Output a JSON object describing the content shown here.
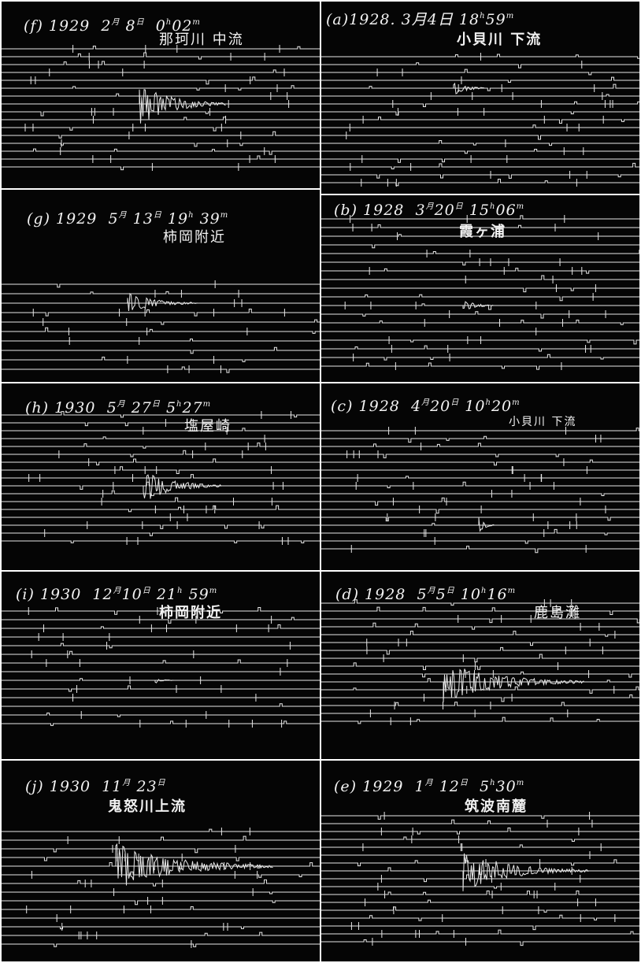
{
  "panels": [
    {
      "id": "f",
      "year": "1929",
      "month": "2",
      "day": "8",
      "hour": "0",
      "minute": "02",
      "paren_label": "(f)",
      "month_mark": "月",
      "day_mark": "日",
      "hour_mark": "h",
      "minute_mark": "m",
      "place": "那珂川 中流"
    },
    {
      "id": "a",
      "year": "1928.",
      "month": "3",
      "day": "4",
      "hour": "18",
      "minute": "59",
      "paren_label": "(a)",
      "month_mark": "月",
      "day_mark": "日",
      "hour_mark": "h",
      "minute_mark": "m",
      "place": "小貝川 下流"
    },
    {
      "id": "g",
      "year": "1929",
      "month": "5",
      "day": "13",
      "hour": "19",
      "minute": "39",
      "paren_label": "(g)",
      "month_mark": "月",
      "day_mark": "日",
      "hour_mark": "h",
      "minute_mark": "m",
      "place": "柿岡附近"
    },
    {
      "id": "b",
      "year": "1928",
      "month": "3",
      "day": "20",
      "hour": "15",
      "minute": "06",
      "paren_label": "(b)",
      "month_mark": "月",
      "day_mark": "日",
      "hour_mark": "h",
      "minute_mark": "m",
      "place": "霞ヶ浦"
    },
    {
      "id": "h",
      "year": "1930",
      "month": "5",
      "day": "27",
      "hour": "5",
      "minute": "27",
      "paren_label": "(h)",
      "month_mark": "月",
      "day_mark": "日",
      "hour_mark": "h",
      "minute_mark": "m",
      "place": "塩屋崎"
    },
    {
      "id": "c",
      "year": "1928",
      "month": "4",
      "day": "20",
      "hour": "10",
      "minute": "20",
      "paren_label": "(c)",
      "month_mark": "月",
      "day_mark": "日",
      "hour_mark": "h",
      "minute_mark": "m",
      "place": "小貝川 下流"
    },
    {
      "id": "i",
      "year": "1930",
      "month": "12",
      "day": "10",
      "hour": "21",
      "minute": "59",
      "paren_label": "(i)",
      "month_mark": "月",
      "day_mark": "日",
      "hour_mark": "h",
      "minute_mark": "m",
      "place": "柿岡附近"
    },
    {
      "id": "d",
      "year": "1928",
      "month": "5",
      "day": "5",
      "hour": "10",
      "minute": "16",
      "paren_label": "(d)",
      "month_mark": "月",
      "day_mark": "日",
      "hour_mark": "h",
      "minute_mark": "m",
      "place": "鹿島灘"
    },
    {
      "id": "j",
      "year": "1930",
      "month": "11",
      "day": "23",
      "hour": "",
      "minute": "",
      "paren_label": "(j)",
      "month_mark": "月",
      "day_mark": "日",
      "hour_mark": "",
      "minute_mark": "",
      "place": "鬼怒川上流"
    },
    {
      "id": "e",
      "year": "1929",
      "month": "1",
      "day": "12",
      "hour": "5",
      "minute": "30",
      "paren_label": "(e)",
      "month_mark": "月",
      "day_mark": "日",
      "hour_mark": "h",
      "minute_mark": "m",
      "place": "筑波南麓"
    }
  ],
  "colors": {
    "background": "#050505",
    "trace": "#e8e8e8",
    "border": "#ffffff"
  }
}
